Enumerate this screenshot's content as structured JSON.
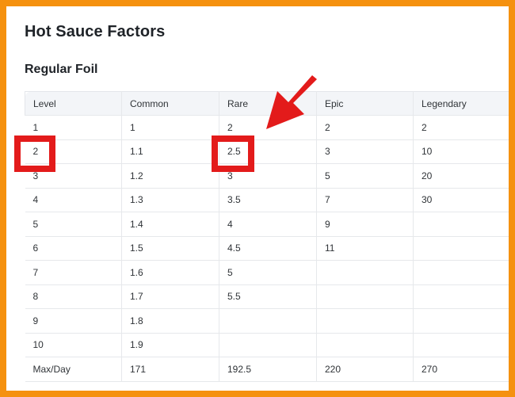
{
  "page": {
    "title": "Hot Sauce Factors",
    "section": "Regular Foil"
  },
  "table": {
    "headers": [
      "Level",
      "Common",
      "Rare",
      "Epic",
      "Legendary"
    ],
    "rows": [
      [
        "1",
        "1",
        "2",
        "2",
        "2"
      ],
      [
        "2",
        "1.1",
        "2.5",
        "3",
        "10"
      ],
      [
        "3",
        "1.2",
        "3",
        "5",
        "20"
      ],
      [
        "4",
        "1.3",
        "3.5",
        "7",
        "30"
      ],
      [
        "5",
        "1.4",
        "4",
        "9",
        ""
      ],
      [
        "6",
        "1.5",
        "4.5",
        "11",
        ""
      ],
      [
        "7",
        "1.6",
        "5",
        "",
        ""
      ],
      [
        "8",
        "1.7",
        "5.5",
        "",
        ""
      ],
      [
        "9",
        "1.8",
        "",
        "",
        ""
      ],
      [
        "10",
        "1.9",
        "",
        "",
        ""
      ],
      [
        "Max/Day",
        "171",
        "192.5",
        "220",
        "270"
      ]
    ]
  },
  "colors": {
    "frame": "#f5910f",
    "highlight": "#e31b1b",
    "header_bg": "#f3f5f8"
  },
  "annotations": {
    "highlighted_cells": [
      "level-2",
      "rare-level-2"
    ],
    "arrow": "red-arrow-icon"
  }
}
